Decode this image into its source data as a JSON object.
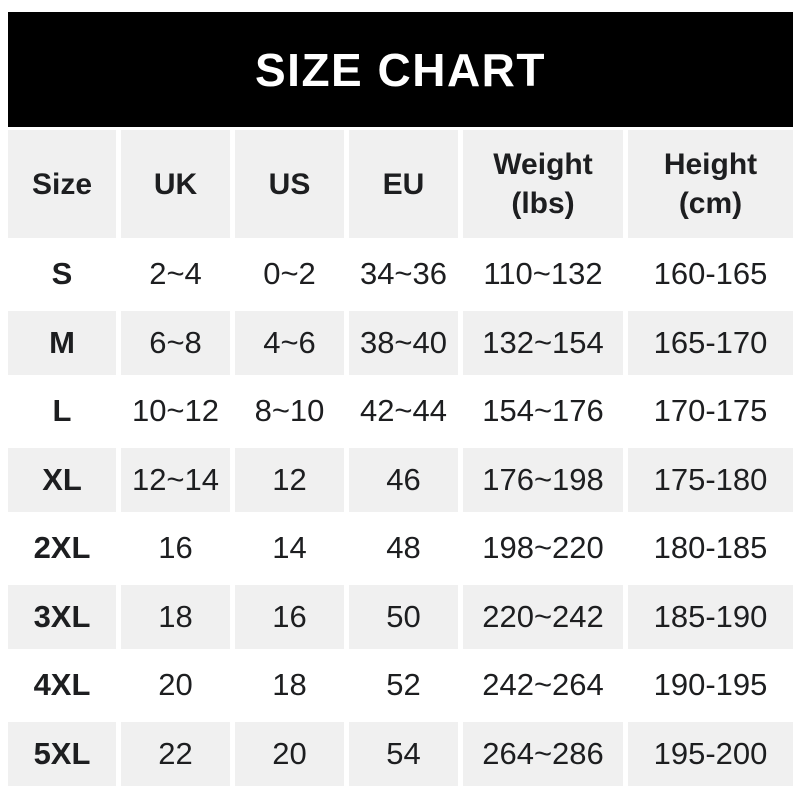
{
  "banner": {
    "title": "SIZE CHART"
  },
  "chart_data": {
    "type": "table",
    "title": "SIZE CHART",
    "columns": [
      "Size",
      "UK",
      "US",
      "EU",
      "Weight\n(lbs)",
      "Height\n(cm)"
    ],
    "rows": [
      [
        "S",
        "2~4",
        "0~2",
        "34~36",
        "110~132",
        "160-165"
      ],
      [
        "M",
        "6~8",
        "4~6",
        "38~40",
        "132~154",
        "165-170"
      ],
      [
        "L",
        "10~12",
        "8~10",
        "42~44",
        "154~176",
        "170-175"
      ],
      [
        "XL",
        "12~14",
        "12",
        "46",
        "176~198",
        "175-180"
      ],
      [
        "2XL",
        "16",
        "14",
        "48",
        "198~220",
        "180-185"
      ],
      [
        "3XL",
        "18",
        "16",
        "50",
        "220~242",
        "185-190"
      ],
      [
        "4XL",
        "20",
        "18",
        "52",
        "242~264",
        "190-195"
      ],
      [
        "5XL",
        "22",
        "20",
        "54",
        "264~286",
        "195-200"
      ]
    ],
    "layout": {
      "header_background": "#f0f0f0",
      "alternate_row_background": "#f0f0f0",
      "base_row_background": "#ffffff",
      "banner_background": "#000000",
      "banner_text_color": "#ffffff",
      "text_color": "#1d1e20",
      "grid_gap_color": "#ffffff"
    }
  }
}
